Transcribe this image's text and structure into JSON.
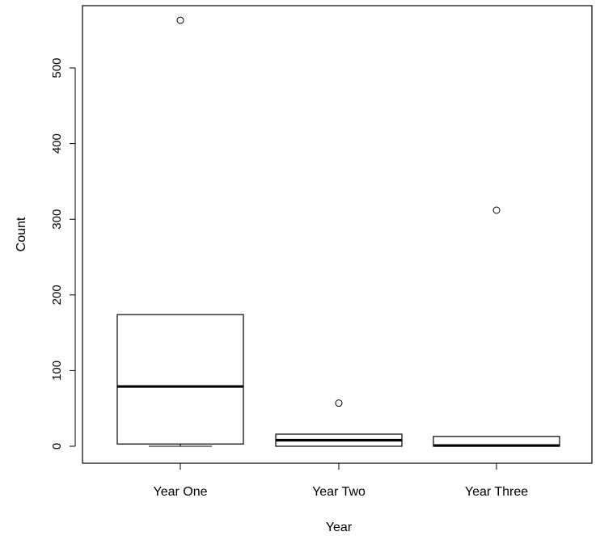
{
  "chart_data": {
    "type": "boxplot",
    "xlabel": "Year",
    "ylabel": "Count",
    "categories": [
      "Year One",
      "Year Two",
      "Year Three"
    ],
    "ylim": [
      -22,
      585
    ],
    "yticks": [
      0,
      100,
      200,
      300,
      400,
      500
    ],
    "grid": false,
    "boxes": [
      {
        "category": "Year One",
        "whisker_low": 0,
        "q1": 3,
        "median": 79,
        "q3": 174,
        "whisker_high": 174,
        "outliers": [
          563
        ]
      },
      {
        "category": "Year Two",
        "whisker_low": 0,
        "q1": 0,
        "median": 8,
        "q3": 16,
        "whisker_high": 16,
        "outliers": [
          57
        ]
      },
      {
        "category": "Year Three",
        "whisker_low": 0,
        "q1": 0,
        "median": 1,
        "q3": 13,
        "whisker_high": 13,
        "outliers": [
          312
        ]
      }
    ]
  }
}
